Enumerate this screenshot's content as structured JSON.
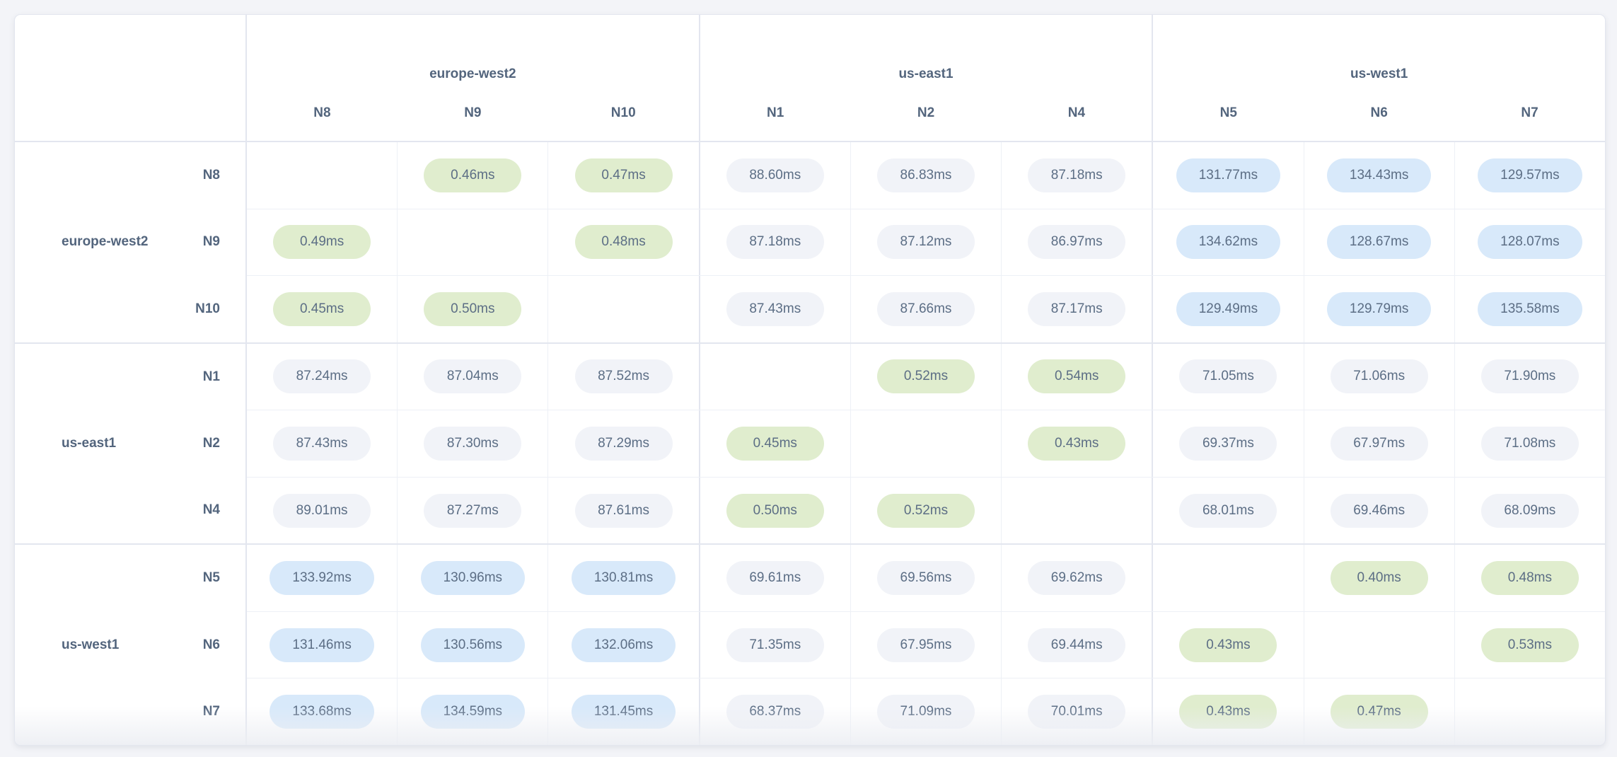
{
  "colors": {
    "page_bg": "#f3f4f8",
    "card_bg": "#ffffff",
    "border_strong": "#e3e6ef",
    "border_light": "#edf0f6",
    "label_text": "#53657d",
    "value_text": "#5c6e85",
    "low": "#e0edce",
    "mid": "#f1f3f8",
    "high": "#d8e9fa"
  },
  "matrix": {
    "unit": "ms",
    "column_groups": [
      {
        "region": "europe-west2",
        "nodes": [
          "N8",
          "N9",
          "N10"
        ]
      },
      {
        "region": "us-east1",
        "nodes": [
          "N1",
          "N2",
          "N4"
        ]
      },
      {
        "region": "us-west1",
        "nodes": [
          "N5",
          "N6",
          "N7"
        ]
      }
    ],
    "columns": [
      "N8",
      "N9",
      "N10",
      "N1",
      "N2",
      "N4",
      "N5",
      "N6",
      "N7"
    ],
    "row_groups": [
      {
        "region": "europe-west2",
        "rows": [
          {
            "node": "N8",
            "values": [
              null,
              "0.46ms",
              "0.47ms",
              "88.60ms",
              "86.83ms",
              "87.18ms",
              "131.77ms",
              "134.43ms",
              "129.57ms"
            ]
          },
          {
            "node": "N9",
            "values": [
              "0.49ms",
              null,
              "0.48ms",
              "87.18ms",
              "87.12ms",
              "86.97ms",
              "134.62ms",
              "128.67ms",
              "128.07ms"
            ]
          },
          {
            "node": "N10",
            "values": [
              "0.45ms",
              "0.50ms",
              null,
              "87.43ms",
              "87.66ms",
              "87.17ms",
              "129.49ms",
              "129.79ms",
              "135.58ms"
            ]
          }
        ]
      },
      {
        "region": "us-east1",
        "rows": [
          {
            "node": "N1",
            "values": [
              "87.24ms",
              "87.04ms",
              "87.52ms",
              null,
              "0.52ms",
              "0.54ms",
              "71.05ms",
              "71.06ms",
              "71.90ms"
            ]
          },
          {
            "node": "N2",
            "values": [
              "87.43ms",
              "87.30ms",
              "87.29ms",
              "0.45ms",
              null,
              "0.43ms",
              "69.37ms",
              "67.97ms",
              "71.08ms"
            ]
          },
          {
            "node": "N4",
            "values": [
              "89.01ms",
              "87.27ms",
              "87.61ms",
              "0.50ms",
              "0.52ms",
              null,
              "68.01ms",
              "69.46ms",
              "68.09ms"
            ]
          }
        ]
      },
      {
        "region": "us-west1",
        "rows": [
          {
            "node": "N5",
            "values": [
              "133.92ms",
              "130.96ms",
              "130.81ms",
              "69.61ms",
              "69.56ms",
              "69.62ms",
              null,
              "0.40ms",
              "0.48ms"
            ]
          },
          {
            "node": "N6",
            "values": [
              "131.46ms",
              "130.56ms",
              "132.06ms",
              "71.35ms",
              "67.95ms",
              "69.44ms",
              "0.43ms",
              null,
              "0.53ms"
            ]
          },
          {
            "node": "N7",
            "values": [
              "133.68ms",
              "134.59ms",
              "131.45ms",
              "68.37ms",
              "71.09ms",
              "70.01ms",
              "0.43ms",
              "0.47ms",
              null
            ]
          }
        ]
      }
    ]
  }
}
